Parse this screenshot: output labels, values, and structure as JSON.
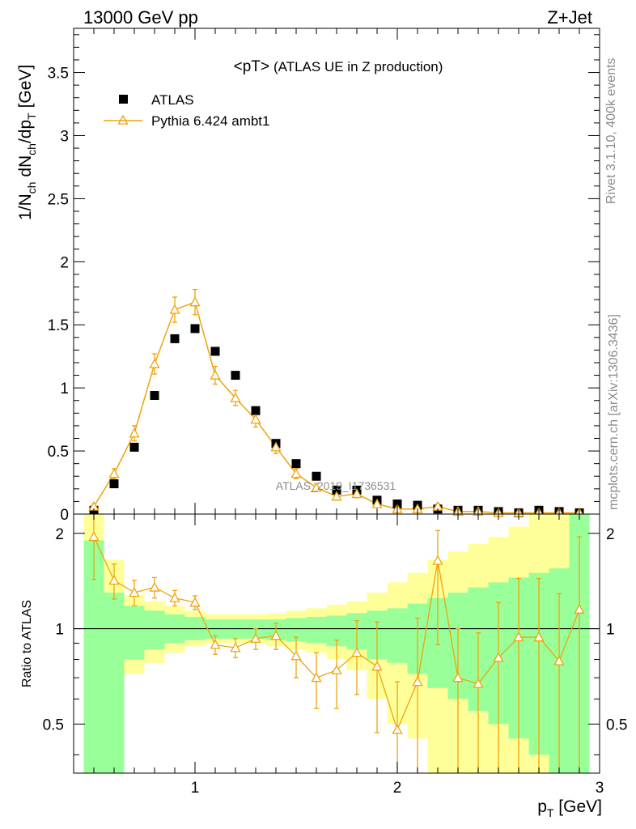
{
  "header": {
    "left": "13000 GeV pp",
    "right": "Z+Jet"
  },
  "side_labels": {
    "rivet": "Rivet 3.1.10,  400k events",
    "mcplots": "mcplots.cern.ch [arXiv:1306.3436]"
  },
  "chart_data": [
    {
      "type": "scatter",
      "title": "<pT> (ATLAS UE in Z production)",
      "title_main": "<pT>",
      "title_sub": "(ATLAS UE in Z production)",
      "watermark": "ATLAS_2019_I1736531",
      "ylabel": "1/N_ch dN_ch/dp_T [GeV]",
      "ylabel_parts": {
        "a": "1/N",
        "b": "ch",
        "c": " dN",
        "d": "ch",
        "e": "/dp",
        "f": "T",
        "g": " [GeV]"
      },
      "xlim": [
        0.4,
        3.0
      ],
      "ylim": [
        0,
        3.85
      ],
      "y_ticks": [
        "0",
        "0.5",
        "1",
        "1.5",
        "2",
        "2.5",
        "3",
        "3.5"
      ],
      "legend_position": "top-left",
      "series": [
        {
          "name": "ATLAS",
          "marker": "square",
          "color": "#000000",
          "x": [
            0.5,
            0.6,
            0.7,
            0.8,
            0.9,
            1.0,
            1.1,
            1.2,
            1.3,
            1.4,
            1.5,
            1.6,
            1.7,
            1.8,
            1.9,
            2.0,
            2.1,
            2.2,
            2.3,
            2.4,
            2.5,
            2.6,
            2.7,
            2.8,
            2.9
          ],
          "y": [
            0.03,
            0.24,
            0.53,
            0.94,
            1.39,
            1.47,
            1.29,
            1.1,
            0.82,
            0.56,
            0.4,
            0.3,
            0.19,
            0.19,
            0.11,
            0.08,
            0.07,
            0.04,
            0.03,
            0.03,
            0.02,
            0.01,
            0.03,
            0.02,
            0.01
          ]
        },
        {
          "name": "Pythia 6.424 ambt1",
          "marker": "open-triangle",
          "color": "#f0a30a",
          "x": [
            0.5,
            0.6,
            0.7,
            0.8,
            0.9,
            1.0,
            1.1,
            1.2,
            1.3,
            1.4,
            1.5,
            1.6,
            1.7,
            1.8,
            1.9,
            2.0,
            2.1,
            2.2,
            2.3,
            2.4,
            2.5,
            2.6,
            2.7,
            2.8,
            2.9
          ],
          "y": [
            0.06,
            0.32,
            0.64,
            1.19,
            1.62,
            1.68,
            1.1,
            0.92,
            0.75,
            0.53,
            0.32,
            0.21,
            0.14,
            0.16,
            0.08,
            0.04,
            0.04,
            0.06,
            0.02,
            0.02,
            0.01,
            0.01,
            0.01,
            0.01,
            0.01
          ],
          "yerr": [
            0.02,
            0.04,
            0.06,
            0.08,
            0.1,
            0.1,
            0.07,
            0.06,
            0.06,
            0.05,
            0.04,
            0.03,
            0.03,
            0.03,
            0.02,
            0.02,
            0.02,
            0.02,
            0.01,
            0.01,
            0.01,
            0.01,
            0.01,
            0.01,
            0.01
          ]
        }
      ]
    },
    {
      "type": "line",
      "ylabel": "Ratio to ATLAS",
      "xlabel": "p_T [GeV]",
      "xlabel_parts": {
        "a": "p",
        "b": "T",
        "c": " [GeV]"
      },
      "xlim": [
        0.4,
        3.0
      ],
      "ylim": [
        0.35,
        2.3
      ],
      "x_ticks": [
        "1",
        "2",
        "3"
      ],
      "y_ticks": [
        "0.5",
        "1",
        "2"
      ],
      "reference_line": 1.0,
      "bands": {
        "bin_edges": [
          0.45,
          0.55,
          0.65,
          0.75,
          0.85,
          0.95,
          1.05,
          1.15,
          1.25,
          1.35,
          1.45,
          1.55,
          1.65,
          1.75,
          1.85,
          1.95,
          2.05,
          2.15,
          2.25,
          2.35,
          2.45,
          2.55,
          2.65,
          2.75,
          2.85,
          2.95
        ],
        "green": {
          "color": "#99ff99",
          "lo": [
            0.35,
            0.35,
            0.8,
            0.86,
            0.9,
            0.92,
            0.93,
            0.93,
            0.93,
            0.92,
            0.91,
            0.9,
            0.88,
            0.86,
            0.8,
            0.78,
            0.72,
            0.65,
            0.6,
            0.55,
            0.5,
            0.45,
            0.4,
            0.35,
            0.35
          ],
          "hi": [
            1.9,
            1.3,
            1.18,
            1.14,
            1.11,
            1.09,
            1.07,
            1.07,
            1.07,
            1.07,
            1.08,
            1.09,
            1.1,
            1.12,
            1.14,
            1.16,
            1.2,
            1.25,
            1.3,
            1.35,
            1.4,
            1.45,
            1.5,
            1.55,
            2.3
          ]
        },
        "yellow": {
          "color": "#ffff99",
          "lo": [
            0.35,
            0.65,
            0.72,
            0.78,
            0.84,
            0.88,
            0.9,
            0.9,
            0.9,
            0.88,
            0.86,
            0.84,
            0.8,
            0.74,
            0.6,
            0.5,
            0.45,
            0.35,
            0.35,
            0.35,
            0.35,
            0.35,
            0.35,
            0.35,
            0.35
          ],
          "hi": [
            2.3,
            1.65,
            1.28,
            1.22,
            1.18,
            1.14,
            1.11,
            1.11,
            1.11,
            1.12,
            1.14,
            1.16,
            1.19,
            1.22,
            1.3,
            1.4,
            1.5,
            1.65,
            1.75,
            1.85,
            1.95,
            2.1,
            2.3,
            2.3,
            2.3
          ]
        }
      },
      "series": [
        {
          "name": "Pythia 6.424 ambt1",
          "color": "#f0a30a",
          "marker": "open-triangle",
          "x": [
            0.5,
            0.6,
            0.7,
            0.8,
            0.9,
            1.0,
            1.1,
            1.2,
            1.3,
            1.4,
            1.5,
            1.6,
            1.7,
            1.8,
            1.9,
            2.0,
            2.1,
            2.2,
            2.3,
            2.4,
            2.5,
            2.6,
            2.7,
            2.8,
            2.9
          ],
          "y": [
            1.95,
            1.42,
            1.3,
            1.35,
            1.25,
            1.21,
            0.89,
            0.87,
            0.93,
            0.95,
            0.82,
            0.7,
            0.74,
            0.84,
            0.76,
            0.48,
            0.68,
            1.64,
            0.7,
            0.67,
            0.81,
            0.94,
            0.94,
            0.79,
            1.15
          ],
          "yerr_lo": [
            0.52,
            0.18,
            0.12,
            0.1,
            0.07,
            0.06,
            0.06,
            0.06,
            0.07,
            0.09,
            0.12,
            0.14,
            0.18,
            0.22,
            0.29,
            0.2,
            0.4,
            0.75,
            0.4,
            0.4,
            0.5,
            0.6,
            0.6,
            0.5,
            0.9
          ],
          "yerr_hi": [
            0.55,
            0.18,
            0.12,
            0.1,
            0.07,
            0.06,
            0.06,
            0.06,
            0.07,
            0.09,
            0.12,
            0.14,
            0.18,
            0.22,
            0.29,
            0.2,
            0.4,
            0.4,
            0.3,
            0.3,
            0.4,
            0.5,
            0.5,
            0.5,
            0.8
          ]
        }
      ]
    }
  ]
}
